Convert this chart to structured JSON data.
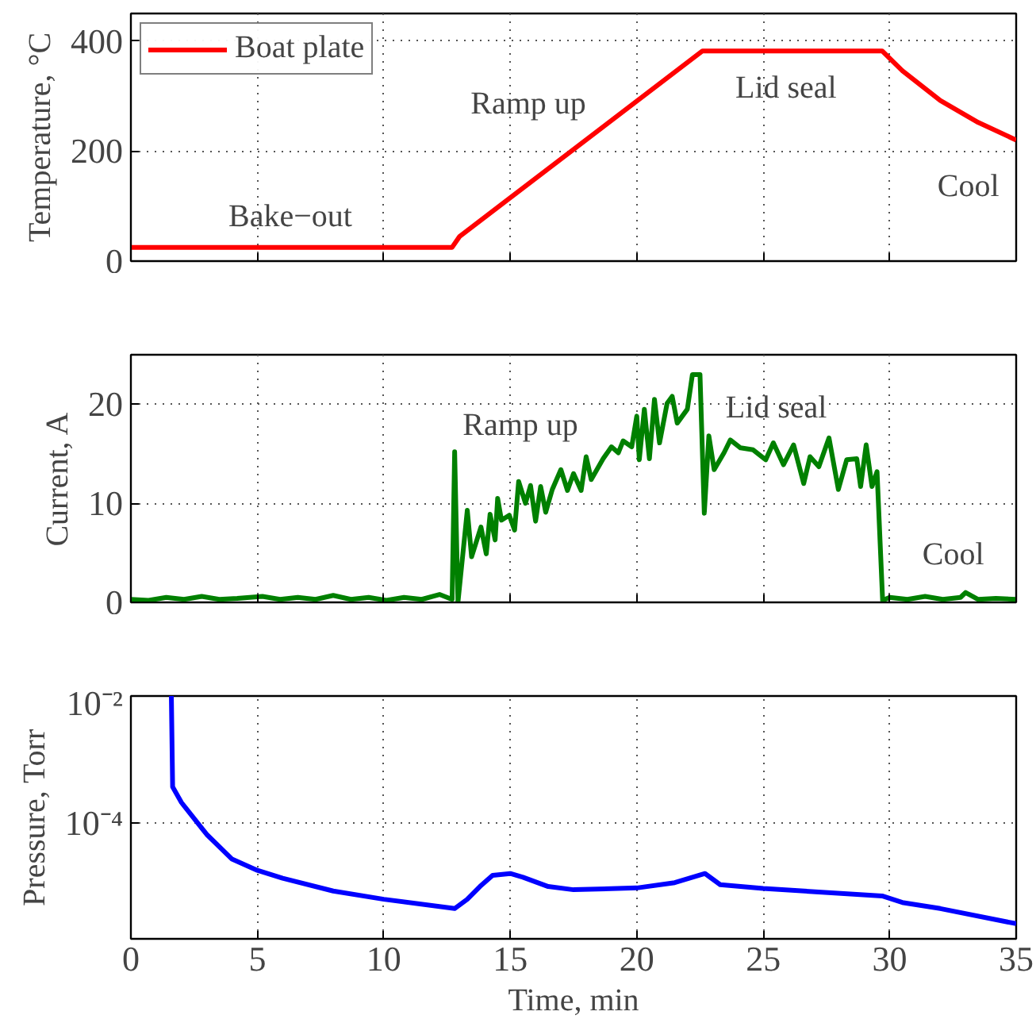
{
  "chart_data": [
    {
      "type": "line",
      "ylabel": "Temperature, °C",
      "xlim": [
        0,
        35
      ],
      "xticks": [
        0,
        5,
        10,
        15,
        20,
        25,
        30,
        35
      ],
      "ylim": [
        0,
        450
      ],
      "yticks": [
        0,
        200,
        400
      ],
      "grid": true,
      "legend": "top left",
      "tick_labels": "y",
      "annotations": [
        "Bake−out",
        "Ramp up",
        "Lid seal",
        "Cool"
      ],
      "series": [
        {
          "name": "Boat plate",
          "color": "#ff0000",
          "x": [
            0,
            12.7,
            13.0,
            22.6,
            29.7,
            30.5,
            32,
            33.5,
            35
          ],
          "values": [
            25,
            25,
            45,
            382,
            382,
            346,
            292,
            252,
            220
          ]
        }
      ]
    },
    {
      "type": "line",
      "ylabel": "Current, A",
      "xlim": [
        0,
        35
      ],
      "xticks": [
        0,
        5,
        10,
        15,
        20,
        25,
        30,
        35
      ],
      "ylim": [
        0,
        25
      ],
      "yticks": [
        0,
        10,
        20
      ],
      "grid": true,
      "tick_labels": "y",
      "annotations": [
        "Ramp up",
        "Lid seal",
        "Cool"
      ],
      "series": [
        {
          "color": "#008000",
          "x": [
            0,
            0.7,
            1.4,
            2.1,
            2.8,
            3.5,
            4.2,
            5.2,
            5.9,
            6.6,
            7.3,
            8.0,
            8.7,
            9.4,
            10.1,
            10.8,
            11.5,
            12.2,
            12.7,
            12.8,
            12.93,
            13.3,
            13.47,
            13.84,
            14.05,
            14.2,
            14.4,
            14.5,
            14.65,
            14.96,
            15.17,
            15.33,
            15.6,
            15.8,
            16.0,
            16.2,
            16.4,
            16.66,
            17.0,
            17.26,
            17.5,
            17.8,
            18.0,
            18.2,
            18.67,
            19.0,
            19.27,
            19.46,
            19.8,
            20.0,
            20.1,
            20.3,
            20.5,
            20.7,
            20.9,
            21.2,
            21.4,
            21.6,
            22.0,
            22.2,
            22.5,
            22.67,
            22.85,
            23.06,
            23.45,
            23.7,
            24.1,
            24.6,
            25.1,
            25.4,
            25.8,
            26.2,
            26.6,
            26.85,
            27.2,
            27.6,
            27.97,
            28.3,
            28.7,
            28.85,
            29.07,
            29.3,
            29.5,
            29.72,
            30.0,
            30.7,
            31.4,
            32.1,
            32.8,
            33.0,
            33.5,
            34.2,
            35.0
          ],
          "values": [
            0.3,
            0.2,
            0.5,
            0.3,
            0.6,
            0.3,
            0.4,
            0.6,
            0.3,
            0.5,
            0.3,
            0.7,
            0.3,
            0.5,
            0.2,
            0.5,
            0.3,
            0.8,
            0.3,
            15.2,
            0,
            9.3,
            4.6,
            7.6,
            4.9,
            8.9,
            6.3,
            10.5,
            8.3,
            8.8,
            7.3,
            12.2,
            10,
            11.8,
            8.2,
            11.7,
            9.1,
            11.4,
            13.4,
            11.3,
            13,
            11.3,
            14.7,
            12.4,
            14.5,
            15.7,
            15.1,
            16.3,
            15.7,
            18.8,
            14.4,
            19.5,
            14.5,
            20.5,
            16.1,
            20.1,
            20.8,
            18.1,
            19.5,
            23,
            23,
            9,
            16.8,
            13.4,
            15.1,
            16.4,
            15.6,
            15.4,
            14.4,
            16.1,
            13.9,
            15.9,
            12,
            14.7,
            13.7,
            16.6,
            11.4,
            14.4,
            14.5,
            11.7,
            15.9,
            11.7,
            13.2,
            0.2,
            0.5,
            0.3,
            0.6,
            0.3,
            0.5,
            1.0,
            0.3,
            0.4,
            0.3
          ]
        }
      ]
    },
    {
      "type": "line",
      "ylabel": "Pressure, Torr",
      "xlabel": "Time, min",
      "xlim": [
        0,
        35
      ],
      "xticks": [
        0,
        5,
        10,
        15,
        20,
        25,
        30,
        35
      ],
      "ylim": [
        1.5e-06,
        0.01
      ],
      "yticks": [
        {
          "value": 0.01,
          "label": "10⁻²"
        },
        {
          "value": 0.0001,
          "label": "10⁻⁴"
        }
      ],
      "log": "y",
      "grid": true,
      "series": [
        {
          "color": "#0000ff",
          "x": [
            1.6,
            1.65,
            2,
            3,
            4,
            5,
            6,
            8,
            10,
            12.8,
            13.3,
            13.8,
            14.3,
            15,
            15.5,
            16.5,
            17.5,
            20,
            21.5,
            22.7,
            23.3,
            25,
            29.7,
            30.5,
            32,
            35
          ],
          "values": [
            0.01,
            0.00037,
            0.00021,
            6.6e-05,
            2.7e-05,
            1.8e-05,
            1.35e-05,
            8.5e-06,
            6.3e-06,
            4.5e-06,
            6.3e-06,
            1e-05,
            1.5e-05,
            1.6e-05,
            1.4e-05,
            1e-05,
            8.9e-06,
            9.5e-06,
            1.15e-05,
            1.6e-05,
            1.07e-05,
            9.3e-06,
            7.1e-06,
            5.6e-06,
            4.5e-06,
            2.6e-06
          ]
        }
      ]
    }
  ]
}
